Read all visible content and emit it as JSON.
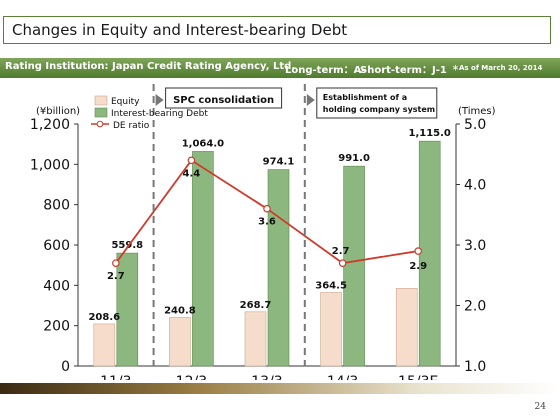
{
  "header": {
    "title": "Changes in Equity and Interest-bearing Debt"
  },
  "rating_bar": {
    "institution": "Rating Institution: Japan Credit Rating Agency, Ltd.",
    "long_term": "Long-term：A-",
    "short_term": "Short-term：J-1",
    "as_of": "＊As of March 20, 2014"
  },
  "page_number": "24",
  "colors": {
    "equity_fill": "#f6dccb",
    "debt_fill": "#8cb87f",
    "de_line": "#d03a2a",
    "bar_band": "#5e8a36"
  },
  "chart_data": {
    "type": "bar",
    "categories": [
      "11/3",
      "12/3",
      "13/3",
      "14/3",
      "15/3E"
    ],
    "series": [
      {
        "name": "Equity",
        "type": "bar",
        "axis": "left",
        "values": [
          208.6,
          240.8,
          268.7,
          364.5,
          385
        ],
        "labels": [
          "208.6",
          "240.8",
          "268.7",
          "364.5",
          ""
        ]
      },
      {
        "name": "Interest-bearing Debt",
        "type": "bar",
        "axis": "left",
        "values": [
          559.8,
          1064.0,
          974.1,
          991.0,
          1115.0
        ],
        "labels": [
          "559.8",
          "1,064.0",
          "974.1",
          "991.0",
          "1,115.0"
        ]
      },
      {
        "name": "DE ratio",
        "type": "line",
        "axis": "right",
        "values": [
          2.7,
          4.4,
          3.6,
          2.7,
          2.9
        ],
        "labels": [
          "2.7",
          "4.4",
          "3.6",
          "2.7",
          "2.9"
        ]
      }
    ],
    "ylabel": "(¥billion)",
    "y2label": "(Times)",
    "ylim": [
      0,
      1200
    ],
    "y2lim": [
      1.0,
      5.0
    ],
    "yticks": [
      "0",
      "200",
      "400",
      "600",
      "800",
      "1,000",
      "1,200"
    ],
    "y2ticks": [
      "1.0",
      "2.0",
      "3.0",
      "4.0",
      "5.0"
    ],
    "annotations": [
      {
        "text": "SPC consolidation",
        "after_category": "11/3"
      },
      {
        "text": "Establishment of a holding company system",
        "after_category": "13/3"
      }
    ],
    "legend": {
      "position": "top-left",
      "items": [
        "Equity",
        "Interest-bearing Debt",
        "DE ratio"
      ]
    },
    "grid": false
  }
}
